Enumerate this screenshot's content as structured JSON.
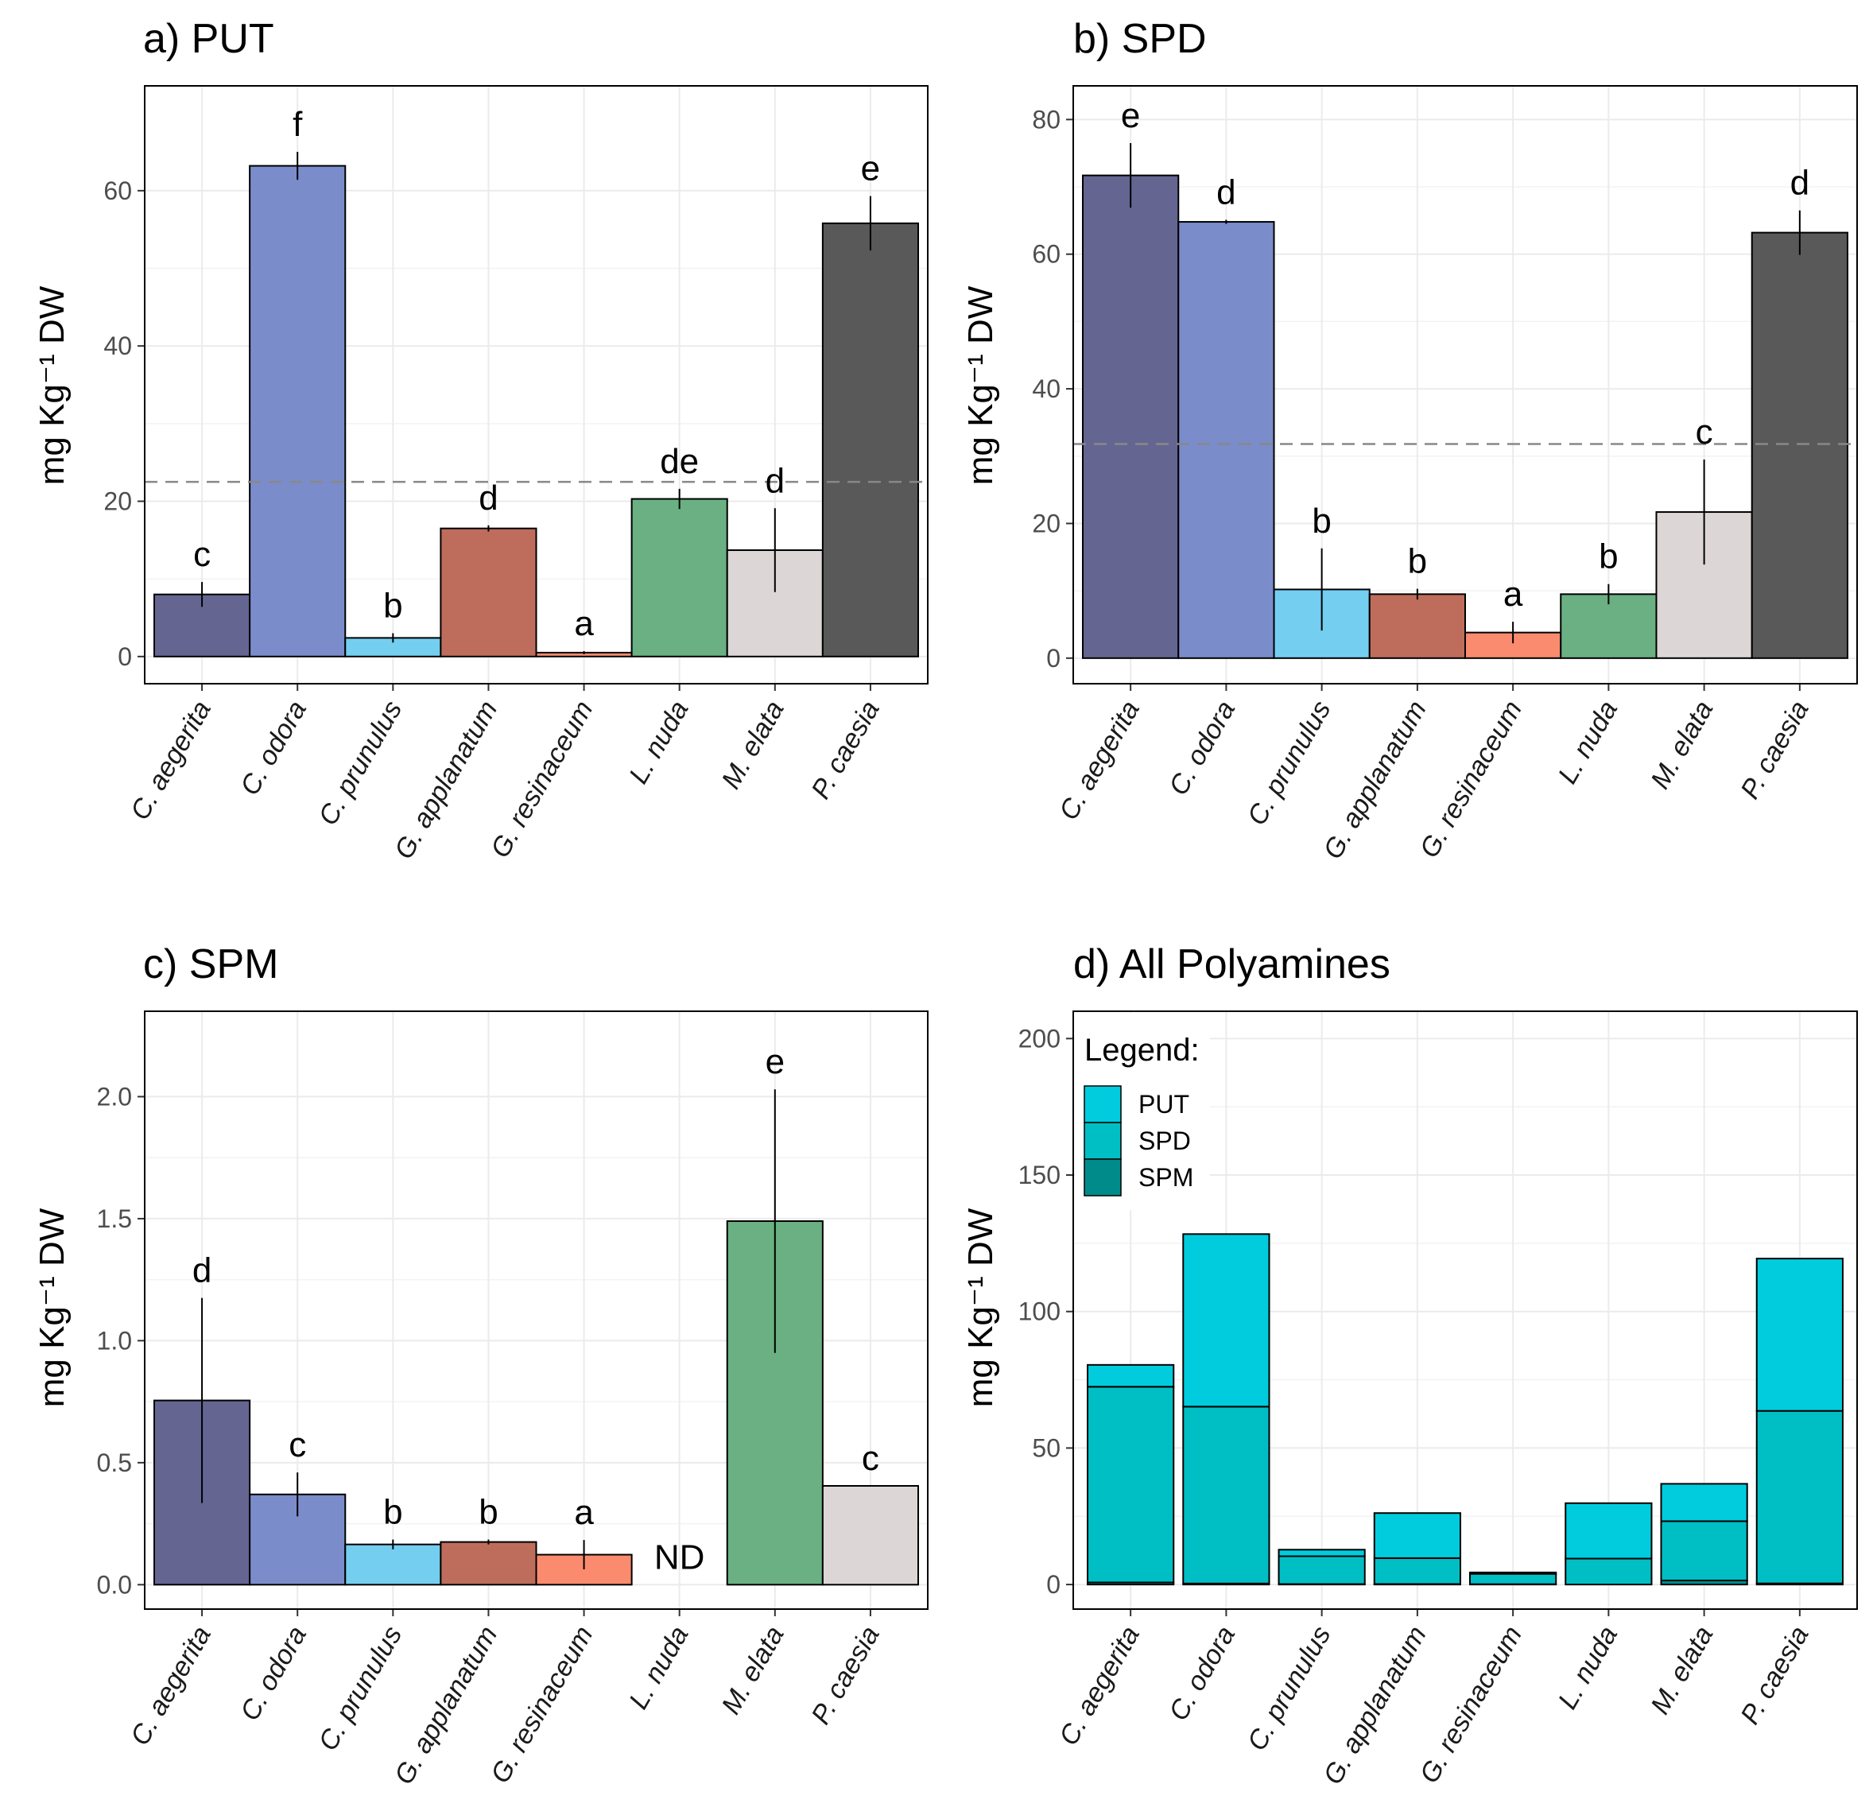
{
  "chart_data": [
    {
      "type": "bar",
      "title": "a) PUT",
      "ylabel": "mg Kg⁻¹ DW",
      "ylim": [
        -3.5,
        73.5
      ],
      "yticks": [
        0,
        20,
        40,
        60
      ],
      "categories": [
        "C. aegerita",
        "C. odora",
        "C. prunulus",
        "G. applanatum",
        "G. resinaceum",
        "L. nuda",
        "M. elata",
        "P. caesia"
      ],
      "values": [
        8,
        63.2,
        2.4,
        16.5,
        0.5,
        20.3,
        13.7,
        55.8
      ],
      "errors": [
        1.6,
        1.8,
        0.6,
        0.4,
        0.2,
        1.3,
        5.4,
        3.5
      ],
      "letters": [
        "c",
        "f",
        "b",
        "d",
        "a",
        "de",
        "d",
        "e"
      ],
      "colors": [
        "#656592",
        "#7b8ccb",
        "#74cef0",
        "#be6d5c",
        "#fb8b6e",
        "#6ab082",
        "#dcd7d6",
        "#595959"
      ],
      "reference_line": 22.5
    },
    {
      "type": "bar",
      "title": "b) SPD",
      "ylabel": "mg Kg⁻¹ DW",
      "ylim": [
        -3.8,
        85
      ],
      "yticks": [
        0,
        20,
        40,
        60,
        80
      ],
      "categories": [
        "C. aegerita",
        "C. odora",
        "C. prunulus",
        "G. applanatum",
        "G. resinaceum",
        "L. nuda",
        "M. elata",
        "P. caesia"
      ],
      "values": [
        71.7,
        64.8,
        10.2,
        9.5,
        3.8,
        9.5,
        21.7,
        63.2
      ],
      "errors": [
        4.8,
        0.3,
        6.1,
        0.8,
        1.6,
        1.5,
        7.8,
        3.3
      ],
      "letters": [
        "e",
        "d",
        "b",
        "b",
        "a",
        "b",
        "c",
        "d"
      ],
      "colors": [
        "#656592",
        "#7b8ccb",
        "#74cef0",
        "#be6d5c",
        "#fb8b6e",
        "#6ab082",
        "#dcd7d6",
        "#595959"
      ],
      "reference_line": 31.8
    },
    {
      "type": "bar",
      "title": "c) SPM",
      "ylabel": "mg Kg⁻¹ DW",
      "ylim": [
        -0.1,
        2.35
      ],
      "yticks": [
        "0.0",
        "0.5",
        "1.0",
        "1.5",
        "2.0"
      ],
      "categories": [
        "C. aegerita",
        "C. odora",
        "C. prunulus",
        "G. applanatum",
        "G. resinaceum",
        "L. nuda",
        "M. elata",
        "P. caesia"
      ],
      "values": [
        0.755,
        0.37,
        0.165,
        0.175,
        0.123,
        0,
        1.49,
        0.405
      ],
      "errors": [
        0.42,
        0.09,
        0.02,
        0.01,
        0.06,
        0,
        0.54,
        0
      ],
      "letters": [
        "d",
        "c",
        "b",
        "b",
        "a",
        "ND",
        "e",
        "c"
      ],
      "colors": [
        "#656592",
        "#7b8ccb",
        "#74cef0",
        "#be6d5c",
        "#fb8b6e",
        "#6ab082",
        "#6ab082",
        "#dcd7d6"
      ]
    },
    {
      "type": "bar",
      "stacked": true,
      "title": "d) All Polyamines",
      "ylabel": "mg Kg⁻¹ DW",
      "ylim": [
        -9,
        210
      ],
      "yticks": [
        0,
        50,
        100,
        150,
        200
      ],
      "categories": [
        "C. aegerita",
        "C. odora",
        "C. prunulus",
        "G. applanatum",
        "G. resinaceum",
        "L. nuda",
        "M. elata",
        "P. caesia"
      ],
      "series": [
        {
          "name": "SPM",
          "values": [
            0.755,
            0.37,
            0.165,
            0.175,
            0.123,
            0,
            1.49,
            0.405
          ],
          "color": "#008b8b"
        },
        {
          "name": "SPD",
          "values": [
            71.7,
            64.8,
            10.2,
            9.5,
            3.8,
            9.5,
            21.7,
            63.2
          ],
          "color": "#00bfc4"
        },
        {
          "name": "PUT",
          "values": [
            8,
            63.2,
            2.4,
            16.5,
            0.5,
            20.3,
            13.7,
            55.8
          ],
          "color": "#00ccdd"
        }
      ],
      "legend": {
        "title": "Legend:",
        "entries": [
          "PUT",
          "SPD",
          "SPM"
        ],
        "position": "top-left"
      }
    }
  ]
}
